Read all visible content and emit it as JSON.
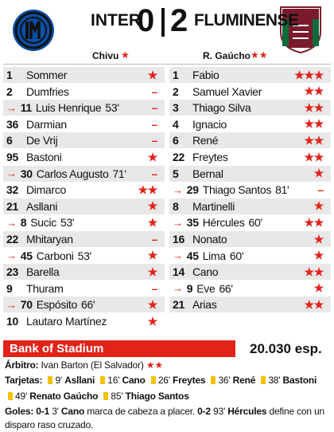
{
  "header": {
    "home": {
      "team": "INTER",
      "score": "0",
      "coach": "Chivu",
      "coach_rating": "★"
    },
    "away": {
      "team": "FLUMINENSE",
      "score": "2",
      "coach": "R. Gaúcho",
      "coach_rating": "★★"
    }
  },
  "lineups": {
    "home": [
      {
        "number": "1",
        "name": "Sommer",
        "rating": "★"
      },
      {
        "number": "2",
        "name": "Dumfries",
        "rating": "–"
      },
      {
        "number": "11",
        "name": "Luis Henrique",
        "minute": "53'",
        "rating": "–",
        "sub": true
      },
      {
        "number": "36",
        "name": "Darmian",
        "rating": "–"
      },
      {
        "number": "6",
        "name": "De Vrij",
        "rating": "–"
      },
      {
        "number": "95",
        "name": "Bastoni",
        "rating": "★"
      },
      {
        "number": "30",
        "name": "Carlos Augusto",
        "minute": "71'",
        "rating": "–",
        "sub": true
      },
      {
        "number": "32",
        "name": "Dimarco",
        "rating": "★★"
      },
      {
        "number": "21",
        "name": "Asllani",
        "rating": "★"
      },
      {
        "number": "8",
        "name": "Sucic",
        "minute": "53'",
        "rating": "★",
        "sub": true
      },
      {
        "number": "22",
        "name": "Mhitaryan",
        "rating": "–"
      },
      {
        "number": "45",
        "name": "Carboni",
        "minute": "53'",
        "rating": "★",
        "sub": true
      },
      {
        "number": "23",
        "name": "Barella",
        "rating": "★"
      },
      {
        "number": "9",
        "name": "Thuram",
        "rating": "–"
      },
      {
        "number": "70",
        "name": "Espósito",
        "minute": "66'",
        "rating": "★",
        "sub": true
      },
      {
        "number": "10",
        "name": "Lautaro Martínez",
        "rating": "★"
      }
    ],
    "away": [
      {
        "number": "1",
        "name": "Fabio",
        "rating": "★★★"
      },
      {
        "number": "2",
        "name": "Samuel Xavier",
        "rating": "★★"
      },
      {
        "number": "3",
        "name": "Thiago Silva",
        "rating": "★★"
      },
      {
        "number": "4",
        "name": "Ignacio",
        "rating": "★★"
      },
      {
        "number": "6",
        "name": "René",
        "rating": "★★"
      },
      {
        "number": "22",
        "name": "Freytes",
        "rating": "★★"
      },
      {
        "number": "5",
        "name": "Bernal",
        "rating": "★"
      },
      {
        "number": "29",
        "name": "Thiago Santos",
        "minute": "81'",
        "rating": "–",
        "sub": true
      },
      {
        "number": "8",
        "name": "Martinelli",
        "rating": "★"
      },
      {
        "number": "35",
        "name": "Hércules",
        "minute": "60'",
        "rating": "★★",
        "sub": true
      },
      {
        "number": "16",
        "name": "Nonato",
        "rating": "★"
      },
      {
        "number": "45",
        "name": "Lima",
        "minute": "60'",
        "rating": "★",
        "sub": true
      },
      {
        "number": "14",
        "name": "Cano",
        "rating": "★★"
      },
      {
        "number": "9",
        "name": "Eve",
        "minute": "66'",
        "rating": "★",
        "sub": true
      },
      {
        "number": "21",
        "name": "Arias",
        "rating": "★★"
      }
    ]
  },
  "footer": {
    "stadium": "Bank of Stadium",
    "attendance": "20.030 esp.",
    "referee_label": "Árbitro:",
    "referee": "Ivan Barton (El Salvador)",
    "referee_rating": "★★",
    "cards_label": "Tarjetas:",
    "cards": [
      {
        "minute": "9'",
        "name": "Asllani"
      },
      {
        "minute": "16'",
        "name": "Cano"
      },
      {
        "minute": "26'",
        "name": "Freytes"
      },
      {
        "minute": "36'",
        "name": "René"
      },
      {
        "minute": "38'",
        "name": "Bastoni"
      },
      {
        "minute": "49'",
        "name": "Renato Gaúcho"
      },
      {
        "minute": "85'",
        "name": "Thiago Santos"
      }
    ],
    "goals_label": "Goles:",
    "goals": [
      {
        "score": "0-1",
        "minute": "3'",
        "player": "Cano",
        "text": "marca de cabeza a placer."
      },
      {
        "score": "0-2",
        "minute": "93'",
        "player": "Hércules",
        "text": "define con un disparo raso cruzado."
      }
    ]
  }
}
